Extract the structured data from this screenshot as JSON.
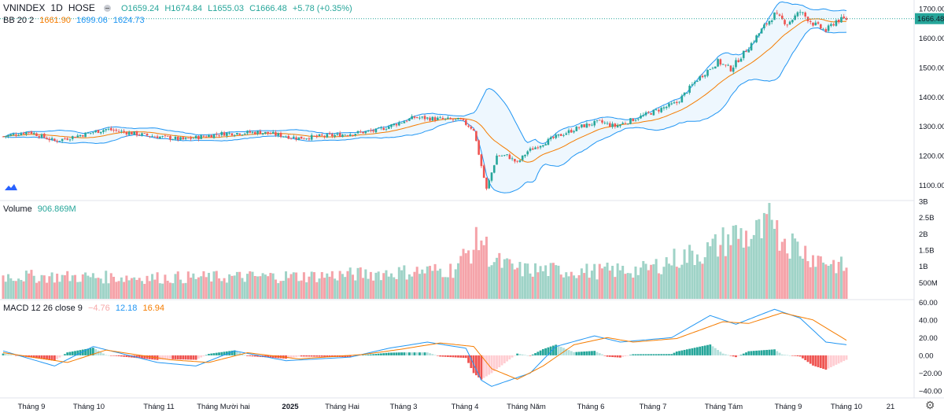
{
  "header": {
    "symbol": "VNINDEX",
    "interval": "1D",
    "exchange": "HOSE",
    "open": "O1659.24",
    "high": "H1674.84",
    "low": "L1655.03",
    "close": "C1666.48",
    "change": "+5.78 (+0.35%)"
  },
  "bb_legend": {
    "name": "BB 20 2",
    "basis": "1661.90",
    "upper": "1699.06",
    "lower": "1624.73"
  },
  "volume_legend": {
    "name": "Volume",
    "value": "906.869M"
  },
  "macd_legend": {
    "name": "MACD 12 26 close 9",
    "hist": "−4.76",
    "macd": "12.18",
    "signal": "16.94"
  },
  "last_price_label": "1666.48",
  "colors": {
    "up": "#26a69a",
    "down": "#ef5350",
    "bb_band": "#2196f3",
    "bb_basis": "#f57c00",
    "macd": "#2196f3",
    "signal": "#f57c00"
  },
  "icons": {
    "logo": "tradingview-logo-icon",
    "settings": "gear-icon"
  },
  "chart_data": [
    {
      "type": "candlestick",
      "title": "VNINDEX 1D HOSE",
      "yticks": [
        "1700.00",
        "1600.00",
        "1500.00",
        "1400.00",
        "1300.00",
        "1200.00",
        "1100.00"
      ],
      "ylim": [
        1050,
        1730
      ],
      "x_labels": [
        "Tháng 9",
        "Tháng 10",
        "Tháng 11",
        "Tháng Mười hai",
        "2025",
        "Tháng Hai",
        "Tháng 3",
        "Tháng 4",
        "Tháng Năm",
        "Tháng 6",
        "Tháng 7",
        "Tháng Tám",
        "Tháng 9",
        "Tháng 10",
        "21"
      ],
      "price_anchors": [
        [
          0,
          1265
        ],
        [
          10,
          1282
        ],
        [
          20,
          1250
        ],
        [
          30,
          1270
        ],
        [
          40,
          1290
        ],
        [
          55,
          1270
        ],
        [
          70,
          1255
        ],
        [
          85,
          1275
        ],
        [
          100,
          1280
        ],
        [
          115,
          1260
        ],
        [
          130,
          1270
        ],
        [
          145,
          1285
        ],
        [
          160,
          1330
        ],
        [
          178,
          1320
        ],
        [
          183,
          1290
        ],
        [
          186,
          1165
        ],
        [
          188,
          1085
        ],
        [
          192,
          1200
        ],
        [
          196,
          1200
        ],
        [
          200,
          1175
        ],
        [
          204,
          1215
        ],
        [
          214,
          1260
        ],
        [
          225,
          1300
        ],
        [
          232,
          1315
        ],
        [
          238,
          1300
        ],
        [
          250,
          1340
        ],
        [
          262,
          1380
        ],
        [
          270,
          1460
        ],
        [
          278,
          1520
        ],
        [
          283,
          1495
        ],
        [
          290,
          1570
        ],
        [
          296,
          1640
        ],
        [
          300,
          1680
        ],
        [
          305,
          1650
        ],
        [
          310,
          1690
        ],
        [
          315,
          1650
        ],
        [
          320,
          1625
        ],
        [
          324,
          1660
        ],
        [
          328,
          1665
        ]
      ]
    },
    {
      "type": "bar",
      "title": "Volume",
      "yticks": [
        "3B",
        "2.5B",
        "2B",
        "1.5B",
        "1B",
        "500M"
      ],
      "ylim": [
        0,
        3000
      ],
      "volume_anchors": [
        [
          0,
          700
        ],
        [
          60,
          650
        ],
        [
          120,
          700
        ],
        [
          150,
          800
        ],
        [
          175,
          900
        ],
        [
          184,
          1700
        ],
        [
          186,
          1900
        ],
        [
          190,
          1200
        ],
        [
          200,
          900
        ],
        [
          230,
          850
        ],
        [
          250,
          900
        ],
        [
          260,
          1200
        ],
        [
          275,
          1500
        ],
        [
          285,
          2000
        ],
        [
          290,
          1900
        ],
        [
          300,
          2200
        ],
        [
          305,
          1800
        ],
        [
          315,
          1300
        ],
        [
          328,
          950
        ]
      ]
    },
    {
      "type": "line",
      "title": "MACD 12 26 close 9",
      "yticks": [
        "60.00",
        "40.00",
        "20.00",
        "0.00",
        "−20.00",
        "−40.00"
      ],
      "ylim": [
        -48,
        62
      ],
      "series": [
        {
          "name": "MACD",
          "anchors": [
            [
              0,
              5
            ],
            [
              20,
              -12
            ],
            [
              35,
              10
            ],
            [
              60,
              -8
            ],
            [
              75,
              -12
            ],
            [
              90,
              5
            ],
            [
              110,
              -6
            ],
            [
              135,
              -2
            ],
            [
              150,
              8
            ],
            [
              165,
              15
            ],
            [
              180,
              8
            ],
            [
              186,
              -28
            ],
            [
              190,
              -35
            ],
            [
              200,
              -25
            ],
            [
              205,
              -20
            ],
            [
              215,
              10
            ],
            [
              230,
              22
            ],
            [
              240,
              15
            ],
            [
              260,
              20
            ],
            [
              275,
              45
            ],
            [
              285,
              35
            ],
            [
              300,
              52
            ],
            [
              310,
              42
            ],
            [
              320,
              15
            ],
            [
              328,
              12
            ]
          ]
        },
        {
          "name": "Signal",
          "anchors": [
            [
              0,
              3
            ],
            [
              25,
              -8
            ],
            [
              40,
              6
            ],
            [
              65,
              -5
            ],
            [
              80,
              -8
            ],
            [
              95,
              3
            ],
            [
              115,
              -4
            ],
            [
              140,
              1
            ],
            [
              155,
              7
            ],
            [
              170,
              14
            ],
            [
              183,
              10
            ],
            [
              190,
              -15
            ],
            [
              200,
              -27
            ],
            [
              210,
              -12
            ],
            [
              222,
              12
            ],
            [
              235,
              20
            ],
            [
              245,
              15
            ],
            [
              262,
              19
            ],
            [
              280,
              38
            ],
            [
              290,
              36
            ],
            [
              303,
              48
            ],
            [
              315,
              40
            ],
            [
              328,
              17
            ]
          ]
        }
      ]
    }
  ]
}
